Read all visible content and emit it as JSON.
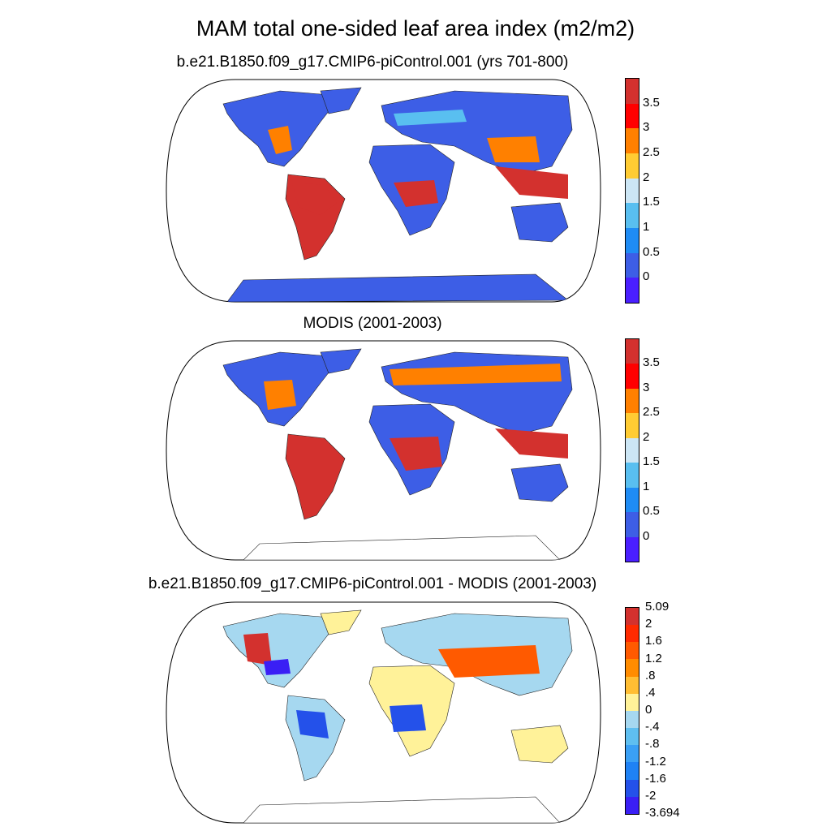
{
  "title": "MAM total one-sided leaf area index (m2/m2)",
  "panels": [
    {
      "title": "b.e21.B1850.f09_g17.CMIP6-piControl.001 (yrs 701-800)",
      "colorbar": {
        "labels": [
          "3.5",
          "3",
          "2.5",
          "2",
          "1.5",
          "1",
          "0.5",
          "0"
        ],
        "colors": [
          "#d3312e",
          "#ff0000",
          "#ff8000",
          "#ffcc33",
          "#cce6f5",
          "#59bff0",
          "#1f8cf5",
          "#3d5ee6",
          "#4a1fff"
        ]
      }
    },
    {
      "title": "MODIS (2001-2003)",
      "colorbar": {
        "labels": [
          "3.5",
          "3",
          "2.5",
          "2",
          "1.5",
          "1",
          "0.5",
          "0"
        ],
        "colors": [
          "#d3312e",
          "#ff0000",
          "#ff8000",
          "#ffcc33",
          "#cce6f5",
          "#59bff0",
          "#1f8cf5",
          "#3d5ee6",
          "#4a1fff"
        ]
      }
    },
    {
      "title": "b.e21.B1850.f09_g17.CMIP6-piControl.001 - MODIS (2001-2003)",
      "colorbar": {
        "labels": [
          "5.09",
          "2",
          "1.6",
          "1.2",
          ".8",
          ".4",
          "0",
          "-.4",
          "-.8",
          "-1.2",
          "-1.6",
          "-2",
          "-3.694"
        ],
        "colors": [
          "#d3312e",
          "#ff2a00",
          "#ff5a00",
          "#ff8c00",
          "#ffbe33",
          "#fff299",
          "#a6d8f0",
          "#5fbff0",
          "#3aa0f5",
          "#1f82f5",
          "#2451ea",
          "#3a1ff5"
        ]
      }
    }
  ]
}
